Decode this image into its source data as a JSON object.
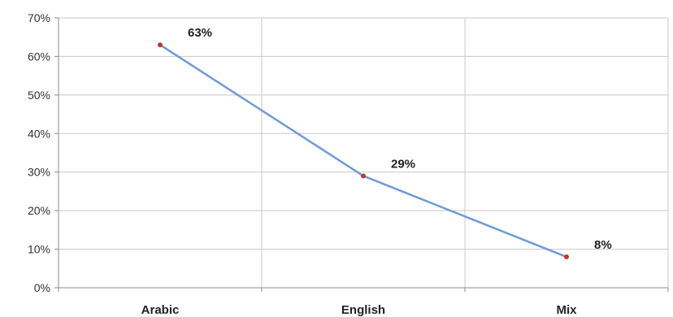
{
  "chart_data": {
    "type": "line",
    "categories": [
      "Arabic",
      "English",
      "Mix"
    ],
    "values": [
      63,
      29,
      8
    ],
    "data_labels": [
      "63%",
      "29%",
      "8%"
    ],
    "ylim": [
      0,
      70
    ],
    "yticks": [
      0,
      10,
      20,
      30,
      40,
      50,
      60,
      70
    ],
    "ytick_labels": [
      "0%",
      "10%",
      "20%",
      "30%",
      "40%",
      "50%",
      "60%",
      "70%"
    ],
    "title": "",
    "xlabel": "",
    "ylabel": "",
    "grid": true,
    "legend": "none",
    "colors": {
      "line": "#6f9bd8",
      "marker": "#c0392b",
      "grid": "#c8c8c8",
      "axis": "#8c8c8c"
    }
  }
}
